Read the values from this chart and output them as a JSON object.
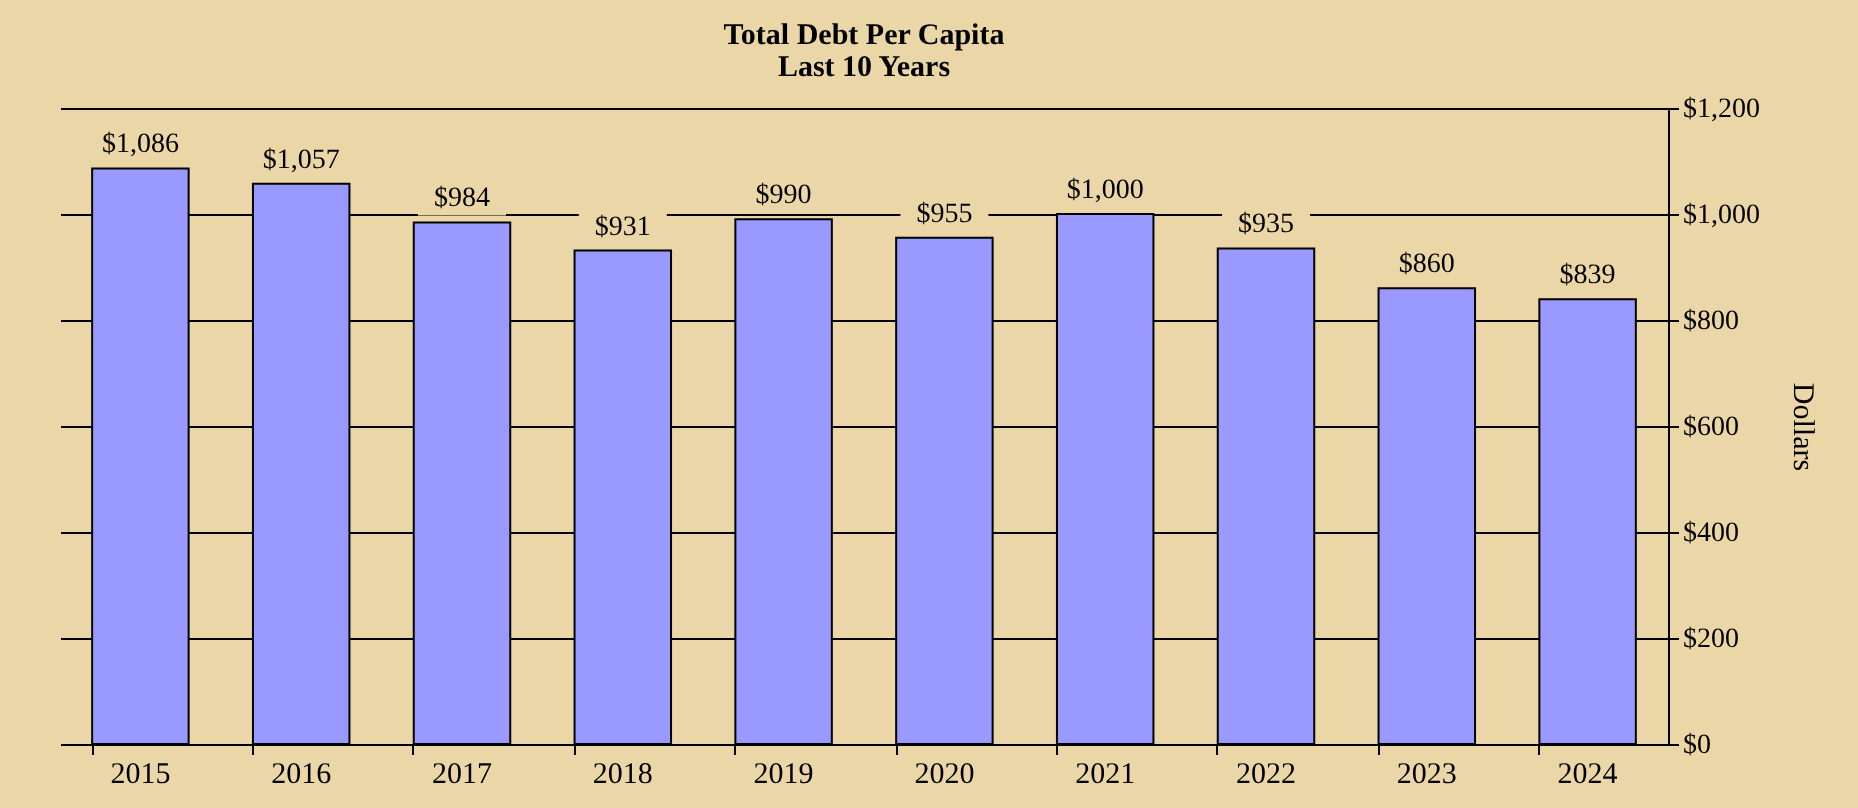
{
  "chart_data": {
    "type": "bar",
    "title": "Total Debt Per Capita",
    "subtitle": "Last 10 Years",
    "ylabel": "Dollars",
    "categories": [
      "2015",
      "2016",
      "2017",
      "2018",
      "2019",
      "2020",
      "2021",
      "2022",
      "2023",
      "2024"
    ],
    "values": [
      1086,
      1057,
      984,
      931,
      990,
      955,
      1000,
      935,
      860,
      839
    ],
    "value_labels": [
      "$1,086",
      "$1,057",
      "$984",
      "$931",
      "$990",
      "$955",
      "$1,000",
      "$935",
      "$860",
      "$839"
    ],
    "color": "#9999ff",
    "ylim": [
      0,
      1200
    ],
    "yticks": [
      {
        "value": 0,
        "label": "$0"
      },
      {
        "value": 200,
        "label": "$200"
      },
      {
        "value": 400,
        "label": "$400"
      },
      {
        "value": 600,
        "label": "$600"
      },
      {
        "value": 800,
        "label": "$800"
      },
      {
        "value": 1000,
        "label": "$1,000"
      },
      {
        "value": 1200,
        "label": "$1,200"
      }
    ],
    "grid": "y"
  }
}
